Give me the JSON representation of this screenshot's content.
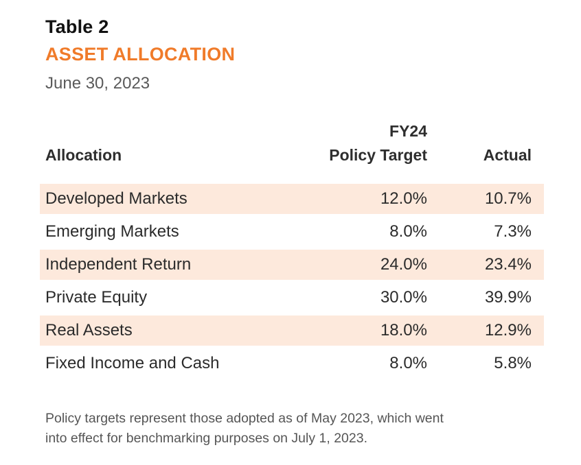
{
  "header": {
    "title": "Table 2",
    "subtitle": "ASSET ALLOCATION",
    "date": "June 30, 2023"
  },
  "colors": {
    "accent": "#f07b2a",
    "row_shade": "#fde9dc"
  },
  "table": {
    "columns": {
      "allocation": "Allocation",
      "target_line1": "FY24",
      "target_line2": "Policy Target",
      "actual": "Actual"
    },
    "rows": [
      {
        "name": "Developed Markets",
        "target": "12.0%",
        "actual": "10.7%"
      },
      {
        "name": "Emerging Markets",
        "target": "8.0%",
        "actual": "7.3%"
      },
      {
        "name": "Independent Return",
        "target": "24.0%",
        "actual": "23.4%"
      },
      {
        "name": "Private Equity",
        "target": "30.0%",
        "actual": "39.9%"
      },
      {
        "name": "Real Assets",
        "target": "18.0%",
        "actual": "12.9%"
      },
      {
        "name": "Fixed Income and Cash",
        "target": "8.0%",
        "actual": "5.8%"
      }
    ]
  },
  "footnote": {
    "line1": "Policy targets represent those adopted as of May 2023, which went",
    "line2": "into effect for benchmarking purposes on July 1, 2023."
  }
}
